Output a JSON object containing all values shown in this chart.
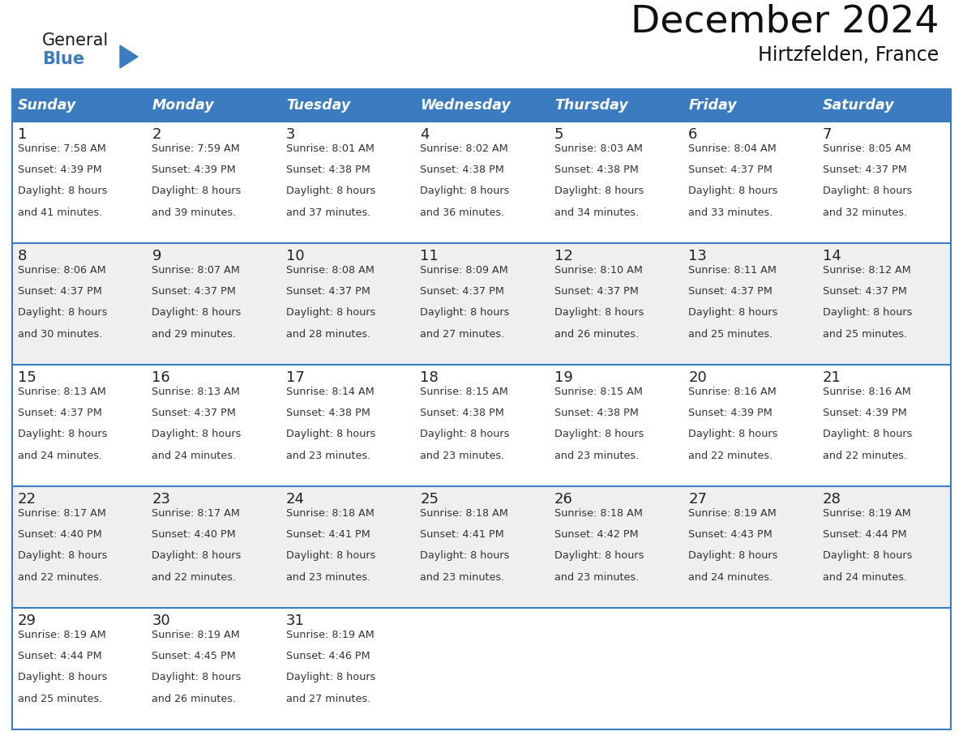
{
  "title": "December 2024",
  "subtitle": "Hirtzfelden, France",
  "days_of_week": [
    "Sunday",
    "Monday",
    "Tuesday",
    "Wednesday",
    "Thursday",
    "Friday",
    "Saturday"
  ],
  "header_bg": "#3B7BBF",
  "header_text": "#FFFFFF",
  "cell_bg_light": "#FFFFFF",
  "cell_bg_alt": "#EFEFEF",
  "border_color": "#3B7BBF",
  "day_num_color": "#222222",
  "text_color": "#333333",
  "title_color": "#111111",
  "calendar_data": [
    [
      {
        "day": 1,
        "sunrise": "7:58 AM",
        "sunset": "4:39 PM",
        "daylight": "8 hours and 41 minutes."
      },
      {
        "day": 2,
        "sunrise": "7:59 AM",
        "sunset": "4:39 PM",
        "daylight": "8 hours and 39 minutes."
      },
      {
        "day": 3,
        "sunrise": "8:01 AM",
        "sunset": "4:38 PM",
        "daylight": "8 hours and 37 minutes."
      },
      {
        "day": 4,
        "sunrise": "8:02 AM",
        "sunset": "4:38 PM",
        "daylight": "8 hours and 36 minutes."
      },
      {
        "day": 5,
        "sunrise": "8:03 AM",
        "sunset": "4:38 PM",
        "daylight": "8 hours and 34 minutes."
      },
      {
        "day": 6,
        "sunrise": "8:04 AM",
        "sunset": "4:37 PM",
        "daylight": "8 hours and 33 minutes."
      },
      {
        "day": 7,
        "sunrise": "8:05 AM",
        "sunset": "4:37 PM",
        "daylight": "8 hours and 32 minutes."
      }
    ],
    [
      {
        "day": 8,
        "sunrise": "8:06 AM",
        "sunset": "4:37 PM",
        "daylight": "8 hours and 30 minutes."
      },
      {
        "day": 9,
        "sunrise": "8:07 AM",
        "sunset": "4:37 PM",
        "daylight": "8 hours and 29 minutes."
      },
      {
        "day": 10,
        "sunrise": "8:08 AM",
        "sunset": "4:37 PM",
        "daylight": "8 hours and 28 minutes."
      },
      {
        "day": 11,
        "sunrise": "8:09 AM",
        "sunset": "4:37 PM",
        "daylight": "8 hours and 27 minutes."
      },
      {
        "day": 12,
        "sunrise": "8:10 AM",
        "sunset": "4:37 PM",
        "daylight": "8 hours and 26 minutes."
      },
      {
        "day": 13,
        "sunrise": "8:11 AM",
        "sunset": "4:37 PM",
        "daylight": "8 hours and 25 minutes."
      },
      {
        "day": 14,
        "sunrise": "8:12 AM",
        "sunset": "4:37 PM",
        "daylight": "8 hours and 25 minutes."
      }
    ],
    [
      {
        "day": 15,
        "sunrise": "8:13 AM",
        "sunset": "4:37 PM",
        "daylight": "8 hours and 24 minutes."
      },
      {
        "day": 16,
        "sunrise": "8:13 AM",
        "sunset": "4:37 PM",
        "daylight": "8 hours and 24 minutes."
      },
      {
        "day": 17,
        "sunrise": "8:14 AM",
        "sunset": "4:38 PM",
        "daylight": "8 hours and 23 minutes."
      },
      {
        "day": 18,
        "sunrise": "8:15 AM",
        "sunset": "4:38 PM",
        "daylight": "8 hours and 23 minutes."
      },
      {
        "day": 19,
        "sunrise": "8:15 AM",
        "sunset": "4:38 PM",
        "daylight": "8 hours and 23 minutes."
      },
      {
        "day": 20,
        "sunrise": "8:16 AM",
        "sunset": "4:39 PM",
        "daylight": "8 hours and 22 minutes."
      },
      {
        "day": 21,
        "sunrise": "8:16 AM",
        "sunset": "4:39 PM",
        "daylight": "8 hours and 22 minutes."
      }
    ],
    [
      {
        "day": 22,
        "sunrise": "8:17 AM",
        "sunset": "4:40 PM",
        "daylight": "8 hours and 22 minutes."
      },
      {
        "day": 23,
        "sunrise": "8:17 AM",
        "sunset": "4:40 PM",
        "daylight": "8 hours and 22 minutes."
      },
      {
        "day": 24,
        "sunrise": "8:18 AM",
        "sunset": "4:41 PM",
        "daylight": "8 hours and 23 minutes."
      },
      {
        "day": 25,
        "sunrise": "8:18 AM",
        "sunset": "4:41 PM",
        "daylight": "8 hours and 23 minutes."
      },
      {
        "day": 26,
        "sunrise": "8:18 AM",
        "sunset": "4:42 PM",
        "daylight": "8 hours and 23 minutes."
      },
      {
        "day": 27,
        "sunrise": "8:19 AM",
        "sunset": "4:43 PM",
        "daylight": "8 hours and 24 minutes."
      },
      {
        "day": 28,
        "sunrise": "8:19 AM",
        "sunset": "4:44 PM",
        "daylight": "8 hours and 24 minutes."
      }
    ],
    [
      {
        "day": 29,
        "sunrise": "8:19 AM",
        "sunset": "4:44 PM",
        "daylight": "8 hours and 25 minutes."
      },
      {
        "day": 30,
        "sunrise": "8:19 AM",
        "sunset": "4:45 PM",
        "daylight": "8 hours and 26 minutes."
      },
      {
        "day": 31,
        "sunrise": "8:19 AM",
        "sunset": "4:46 PM",
        "daylight": "8 hours and 27 minutes."
      },
      null,
      null,
      null,
      null
    ]
  ],
  "logo_general_color": "#1a1a1a",
  "logo_blue_color": "#3B7BBF"
}
